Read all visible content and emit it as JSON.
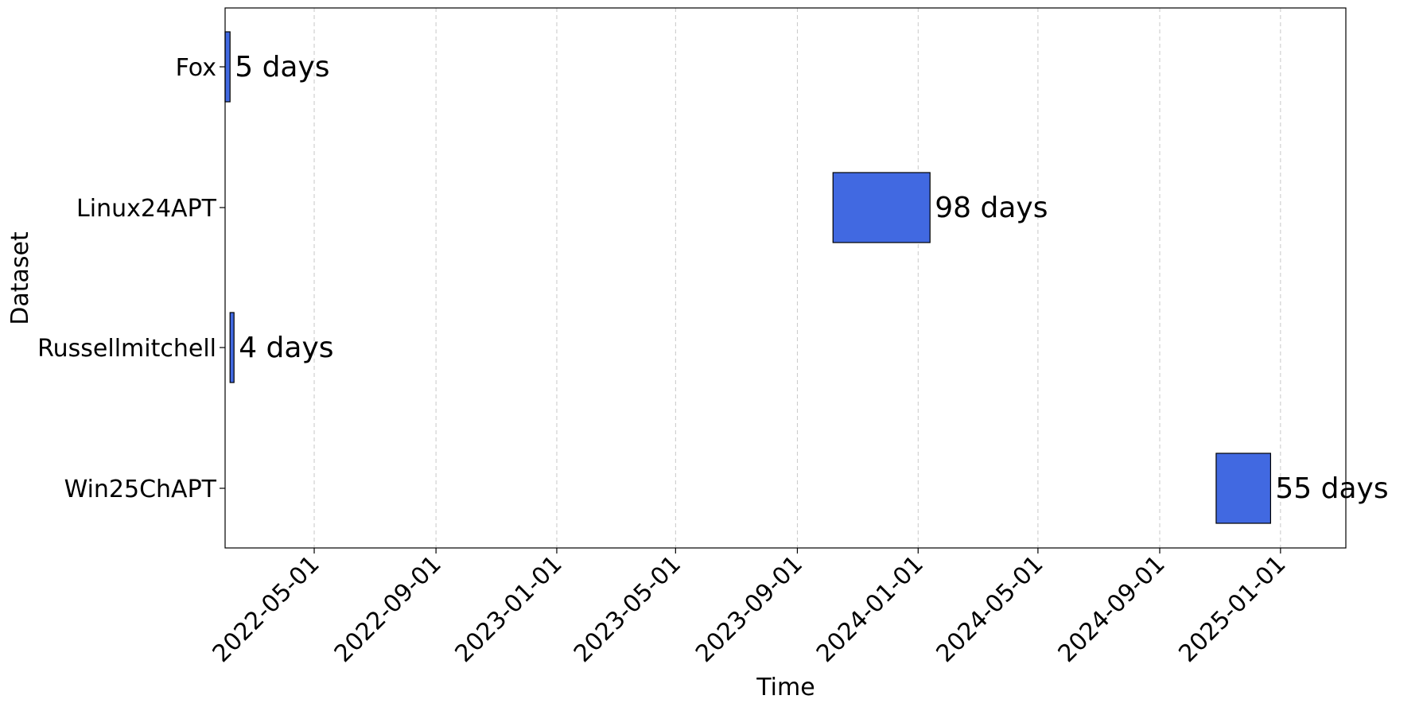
{
  "chart_data": {
    "type": "bar",
    "orientation": "horizontal-timeline",
    "title": "",
    "xlabel": "Time",
    "ylabel": "Dataset",
    "xlim": [
      "2022-01-31",
      "2025-03-08"
    ],
    "x_ticks": [
      "2022-05-01",
      "2022-09-01",
      "2023-01-01",
      "2023-05-01",
      "2023-09-01",
      "2024-01-01",
      "2024-05-01",
      "2024-09-01",
      "2025-01-01"
    ],
    "grid": "x-dashed",
    "bar_color": "#4169e1",
    "categories": [
      "Fox",
      "Linux24APT",
      "Russellmitchell",
      "Win25ChAPT"
    ],
    "bars": [
      {
        "category": "Fox",
        "start": "2022-01-31",
        "end": "2022-02-05",
        "label": "5 days"
      },
      {
        "category": "Linux24APT",
        "start": "2023-10-07",
        "end": "2024-01-13",
        "label": "98 days"
      },
      {
        "category": "Russellmitchell",
        "start": "2022-02-05",
        "end": "2022-02-09",
        "label": "4 days"
      },
      {
        "category": "Win25ChAPT",
        "start": "2024-10-28",
        "end": "2024-12-22",
        "label": "55 days"
      }
    ]
  }
}
